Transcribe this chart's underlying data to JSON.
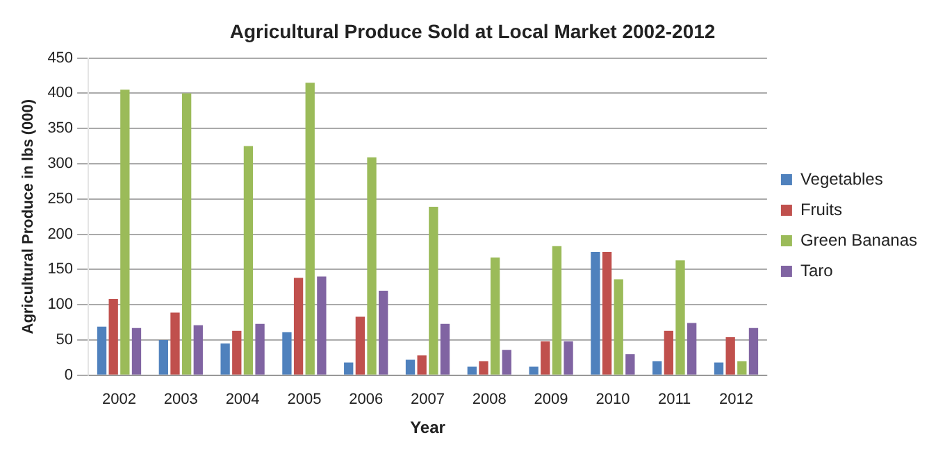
{
  "chart_data": {
    "type": "bar",
    "title": "Agricultural Produce Sold at Local Market 2002-2012",
    "xlabel": "Year",
    "ylabel": "Agricultural Produce in lbs (000)",
    "categories": [
      "2002",
      "2003",
      "2004",
      "2005",
      "2006",
      "2007",
      "2008",
      "2009",
      "2010",
      "2011",
      "2012"
    ],
    "series": [
      {
        "name": "Vegetables",
        "color": "#4f81bd",
        "values": [
          69,
          50,
          45,
          61,
          18,
          22,
          12,
          12,
          175,
          20,
          18
        ]
      },
      {
        "name": "Fruits",
        "color": "#c0504d",
        "values": [
          108,
          89,
          63,
          138,
          83,
          28,
          20,
          48,
          175,
          63,
          54
        ]
      },
      {
        "name": "Green Bananas",
        "color": "#9bbb59",
        "values": [
          405,
          400,
          325,
          415,
          309,
          239,
          167,
          183,
          136,
          163,
          20
        ]
      },
      {
        "name": "Taro",
        "color": "#8064a2",
        "values": [
          67,
          71,
          73,
          140,
          120,
          73,
          36,
          48,
          30,
          74,
          67
        ]
      }
    ],
    "ylim": [
      0,
      450
    ],
    "yticks": [
      0,
      50,
      100,
      150,
      200,
      250,
      300,
      350,
      400,
      450
    ],
    "grid": "y",
    "legend": "right"
  }
}
